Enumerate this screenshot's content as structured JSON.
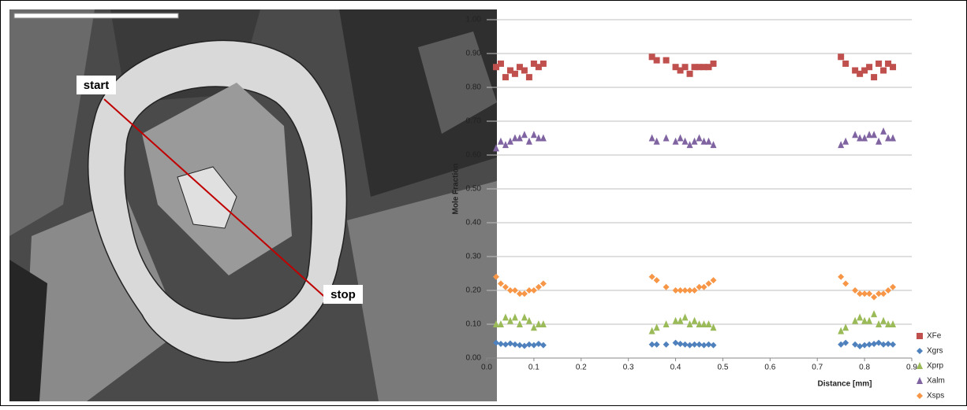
{
  "image": {
    "labels": [
      "start",
      "stop"
    ]
  },
  "chart_data": {
    "type": "scatter",
    "xlabel": "Distance [mm]",
    "ylabel": "Mole Fraction",
    "xlim": [
      0,
      0.9
    ],
    "ylim": [
      0,
      1
    ],
    "xticks": [
      {
        "value": 0,
        "label": "0.0"
      },
      0.1,
      0.2,
      0.3,
      0.4,
      0.5,
      0.6,
      0.7,
      0.8,
      0.9
    ],
    "yticks": [
      {
        "value": 0,
        "label": "0.00"
      },
      {
        "value": 0.1,
        "label": "0.10"
      },
      {
        "value": 0.2,
        "label": "0.20"
      },
      {
        "value": 0.3,
        "label": "0.30"
      },
      {
        "value": 0.4,
        "label": "0.40"
      },
      {
        "value": 0.5,
        "label": "0.50"
      },
      {
        "value": 0.6,
        "label": "0.60"
      },
      {
        "value": 0.7,
        "label": "0.70"
      },
      {
        "value": 0.8,
        "label": "0.80"
      },
      {
        "value": 0.9,
        "label": "0.90"
      },
      {
        "value": 1,
        "label": "1.00"
      }
    ],
    "grid": true,
    "legend": "right",
    "x": [
      0.02,
      0.03,
      0.04,
      0.05,
      0.06,
      0.07,
      0.08,
      0.09,
      0.1,
      0.11,
      0.12,
      0.35,
      0.36,
      0.38,
      0.4,
      0.41,
      0.42,
      0.43,
      0.44,
      0.45,
      0.46,
      0.47,
      0.48,
      0.75,
      0.76,
      0.78,
      0.79,
      0.8,
      0.81,
      0.82,
      0.83,
      0.84,
      0.85,
      0.86
    ],
    "series": [
      {
        "name": "XFe",
        "color": "#c0504d",
        "marker": "square",
        "values": [
          0.86,
          0.87,
          0.83,
          0.85,
          0.84,
          0.86,
          0.85,
          0.83,
          0.87,
          0.86,
          0.87,
          0.89,
          0.88,
          0.88,
          0.86,
          0.85,
          0.86,
          0.84,
          0.86,
          0.86,
          0.86,
          0.86,
          0.87,
          0.89,
          0.87,
          0.85,
          0.84,
          0.85,
          0.86,
          0.83,
          0.87,
          0.85,
          0.87,
          0.86
        ]
      },
      {
        "name": "Xgrs",
        "color": "#4f81bd",
        "marker": "diamond",
        "values": [
          0.045,
          0.042,
          0.04,
          0.043,
          0.04,
          0.038,
          0.036,
          0.04,
          0.038,
          0.042,
          0.038,
          0.04,
          0.04,
          0.04,
          0.045,
          0.042,
          0.04,
          0.038,
          0.04,
          0.04,
          0.038,
          0.04,
          0.038,
          0.04,
          0.045,
          0.04,
          0.035,
          0.038,
          0.04,
          0.042,
          0.045,
          0.04,
          0.042,
          0.04
        ]
      },
      {
        "name": "Xprp",
        "color": "#9bbb59",
        "marker": "triangle",
        "values": [
          0.1,
          0.1,
          0.12,
          0.11,
          0.12,
          0.1,
          0.12,
          0.11,
          0.09,
          0.1,
          0.1,
          0.08,
          0.09,
          0.1,
          0.11,
          0.11,
          0.12,
          0.1,
          0.11,
          0.1,
          0.1,
          0.1,
          0.09,
          0.08,
          0.09,
          0.11,
          0.12,
          0.11,
          0.11,
          0.13,
          0.1,
          0.11,
          0.1,
          0.1
        ]
      },
      {
        "name": "Xalm",
        "color": "#8064a2",
        "marker": "triangle",
        "values": [
          0.62,
          0.64,
          0.63,
          0.64,
          0.65,
          0.65,
          0.66,
          0.64,
          0.66,
          0.65,
          0.65,
          0.65,
          0.64,
          0.65,
          0.64,
          0.65,
          0.64,
          0.63,
          0.64,
          0.65,
          0.64,
          0.64,
          0.63,
          0.63,
          0.64,
          0.66,
          0.65,
          0.65,
          0.66,
          0.66,
          0.64,
          0.67,
          0.65,
          0.65
        ]
      },
      {
        "name": "Xsps",
        "color": "#f79646",
        "marker": "diamond",
        "values": [
          0.24,
          0.22,
          0.21,
          0.2,
          0.2,
          0.19,
          0.19,
          0.2,
          0.2,
          0.21,
          0.22,
          0.24,
          0.23,
          0.21,
          0.2,
          0.2,
          0.2,
          0.2,
          0.2,
          0.21,
          0.21,
          0.22,
          0.23,
          0.24,
          0.22,
          0.2,
          0.19,
          0.19,
          0.19,
          0.18,
          0.19,
          0.19,
          0.2,
          0.21
        ]
      }
    ]
  }
}
